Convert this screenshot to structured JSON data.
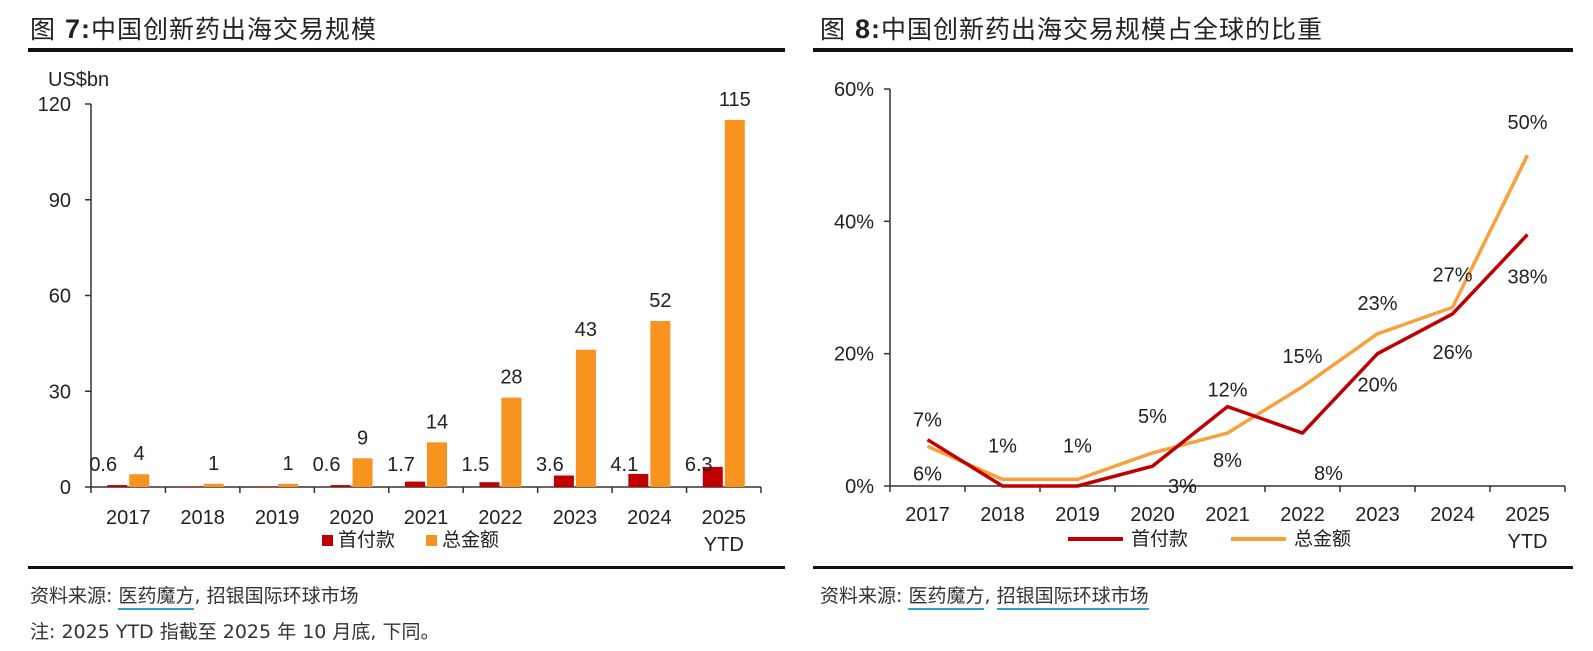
{
  "left": {
    "title_prefix": "图",
    "title_num": "7:",
    "title_text": "中国创新药出海交易规模",
    "unit": "US$bn",
    "source_label": "资料来源:",
    "source_1": "医药魔方",
    "source_sep": ",",
    "source_2": "招银国际环球市场",
    "note": "注: 2025 YTD 指截至 2025 年 10 月底, 下同。"
  },
  "right": {
    "title_prefix": "图",
    "title_num": "8:",
    "title_text": "中国创新药出海交易规模占全球的比重",
    "source_label": "资料来源:",
    "source_1": "医药魔方",
    "source_sep": ",",
    "source_2": "招银国际环球市场"
  },
  "colors": {
    "upfront_bar": "#c00000",
    "total_bar": "#f7931e",
    "upfront_line": "#c00000",
    "total_line": "#f7a03c"
  },
  "chart_data": [
    {
      "type": "bar",
      "title": "中国创新药出海交易规模",
      "ylabel": "US$bn",
      "ylim": [
        0,
        120
      ],
      "yticks": [
        "0",
        "30",
        "60",
        "90",
        "120"
      ],
      "yticks_values": [
        0,
        30,
        60,
        90,
        120
      ],
      "categories": [
        "2017",
        "2018",
        "2019",
        "2020",
        "2021",
        "2022",
        "2023",
        "2024",
        "2025"
      ],
      "category_sub": [
        "",
        "",
        "",
        "",
        "",
        "",
        "",
        "",
        "YTD"
      ],
      "series": [
        {
          "name": "首付款",
          "values": [
            0.6,
            0.1,
            0.1,
            0.6,
            1.7,
            1.5,
            3.6,
            4.1,
            6.3
          ],
          "labels": [
            "0.6",
            "",
            "",
            "0.6",
            "1.7",
            "1.5",
            "3.6",
            "4.1",
            "6.3"
          ]
        },
        {
          "name": "总金额",
          "values": [
            4,
            1,
            1,
            9,
            14,
            28,
            43,
            52,
            115
          ],
          "labels": [
            "4",
            "1",
            "1",
            "9",
            "14",
            "28",
            "43",
            "52",
            "115"
          ]
        }
      ],
      "legend": "bottom"
    },
    {
      "type": "line",
      "title": "中国创新药出海交易规模占全球的比重",
      "ylim": [
        0,
        60
      ],
      "yticks": [
        "0%",
        "20%",
        "40%",
        "60%"
      ],
      "yticks_values": [
        0,
        20,
        40,
        60
      ],
      "categories": [
        "2017",
        "2018",
        "2019",
        "2020",
        "2021",
        "2022",
        "2023",
        "2024",
        "2025"
      ],
      "category_sub": [
        "",
        "",
        "",
        "",
        "",
        "",
        "",
        "",
        "YTD"
      ],
      "series": [
        {
          "name": "首付款",
          "values": [
            7,
            0,
            0,
            3,
            12,
            8,
            20,
            26,
            38
          ],
          "labels": [
            "7%",
            "",
            "",
            "3%",
            "12%",
            "8%",
            "20%",
            "26%",
            "38%"
          ]
        },
        {
          "name": "总金额",
          "values": [
            6,
            1,
            1,
            5,
            8,
            15,
            23,
            27,
            50
          ],
          "labels": [
            "6%",
            "1%",
            "1%",
            "5%",
            "8%",
            "15%",
            "23%",
            "27%",
            "50%"
          ]
        }
      ],
      "legend": "bottom"
    }
  ]
}
